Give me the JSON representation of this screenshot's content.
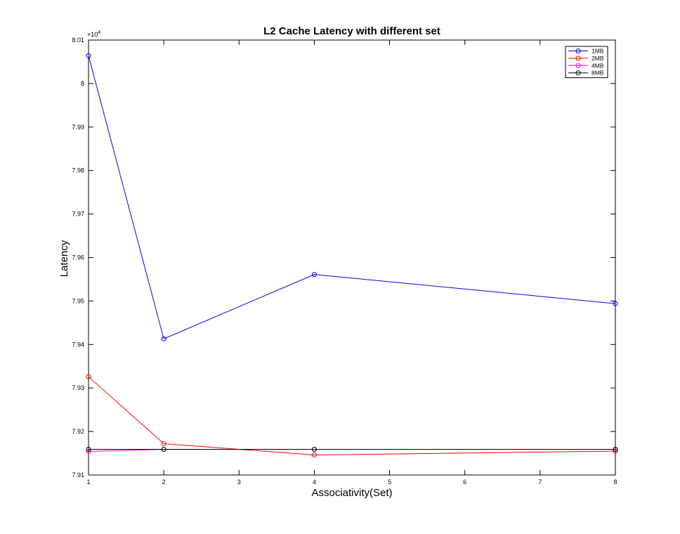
{
  "chart_data": {
    "type": "line",
    "title": "L2 Cache Latency with different set",
    "xlabel": "Associativity(Set)",
    "ylabel": "Latency",
    "exponent_label": "×10",
    "exponent_power": "4",
    "multiplier": 10000,
    "xlim": [
      1,
      8
    ],
    "ylim": [
      7.91,
      8.01
    ],
    "xticks": [
      1,
      2,
      3,
      4,
      5,
      6,
      7,
      8
    ],
    "yticks": [
      7.91,
      7.92,
      7.93,
      7.94,
      7.95,
      7.96,
      7.97,
      7.98,
      7.99,
      8.0,
      8.01
    ],
    "ytick_labels": [
      "7.91",
      "7.92",
      "7.93",
      "7.94",
      "7.95",
      "7.96",
      "7.97",
      "7.98",
      "7.99",
      "8",
      "8.01"
    ],
    "x": [
      1,
      2,
      4,
      8
    ],
    "grid": false,
    "legend_position": "top-right",
    "series": [
      {
        "name": "1MB",
        "color": "#0000ff",
        "values": [
          80064,
          79413,
          79561,
          79494
        ]
      },
      {
        "name": "2MB",
        "color": "#ff0000",
        "values": [
          79326,
          79172,
          79146,
          79155
        ]
      },
      {
        "name": "4MB",
        "color": "#ff00ff",
        "values": [
          79154,
          79159,
          79159,
          79159
        ]
      },
      {
        "name": "8MB",
        "color": "#000000",
        "values": [
          79159,
          79159,
          79159,
          79159
        ]
      }
    ]
  }
}
